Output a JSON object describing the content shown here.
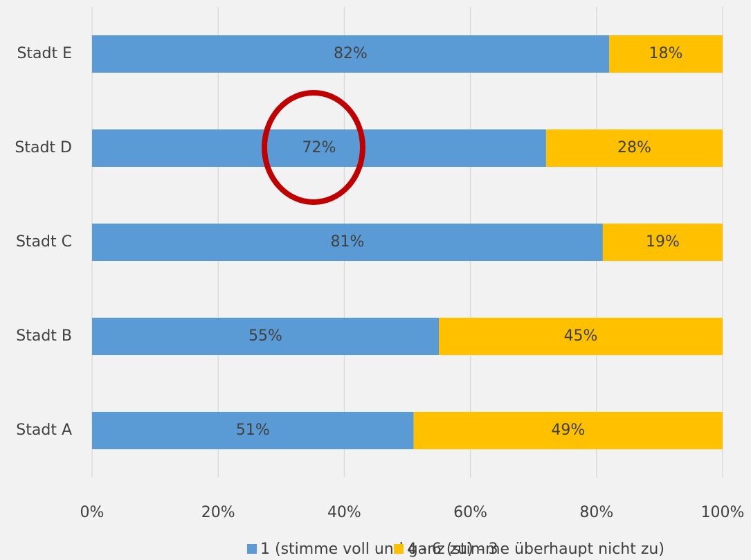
{
  "chart_data": {
    "type": "stacked_bar_horizontal",
    "categories": [
      "Stadt E",
      "Stadt D",
      "Stadt C",
      "Stadt B",
      "Stadt A"
    ],
    "series": [
      {
        "name": "1 (stimme voll und ganz zu) - 3",
        "color": "#5b9bd5",
        "values": [
          82,
          72,
          81,
          55,
          51
        ],
        "value_labels": [
          "82%",
          "72%",
          "81%",
          "55%",
          "51%"
        ]
      },
      {
        "name": "4 - 6 (stimme überhaupt nicht zu)",
        "color": "#ffc000",
        "values": [
          18,
          28,
          19,
          45,
          49
        ],
        "value_labels": [
          "18%",
          "28%",
          "19%",
          "45%",
          "49%"
        ]
      }
    ],
    "xlim": [
      0,
      100
    ],
    "xticks": [
      {
        "value": 0,
        "label": "0%"
      },
      {
        "value": 20,
        "label": "20%"
      },
      {
        "value": 40,
        "label": "40%"
      },
      {
        "value": 60,
        "label": "60%"
      },
      {
        "value": 80,
        "label": "80%"
      },
      {
        "value": 100,
        "label": "100%"
      }
    ],
    "grid": true,
    "legend": "bottom"
  }
}
